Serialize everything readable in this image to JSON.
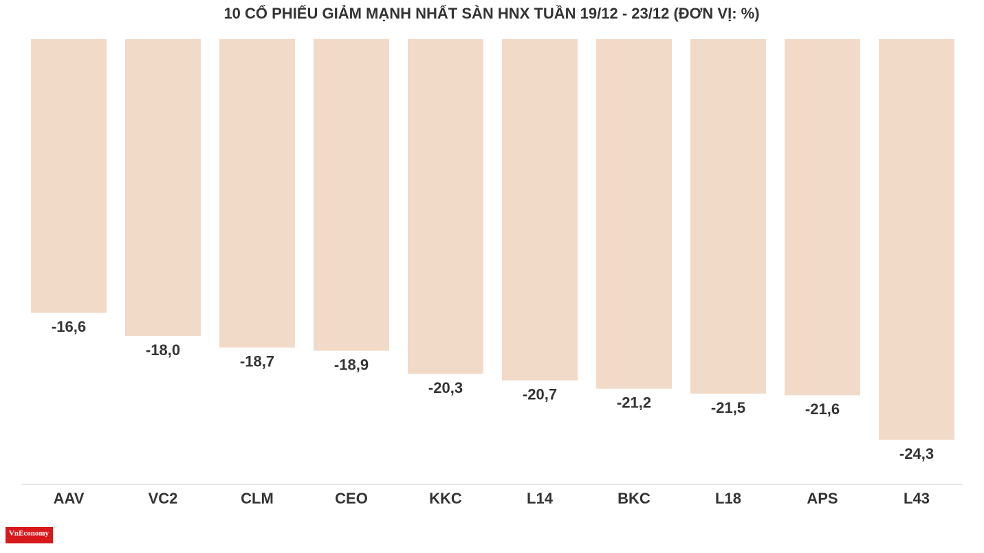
{
  "chart_data": {
    "type": "bar",
    "title": "10 CỔ PHIẾU GIẢM MẠNH NHẤT SÀN HNX TUẦN 19/12 - 23/12 (ĐƠN VỊ: %)",
    "categories": [
      "AAV",
      "VC2",
      "CLM",
      "CEO",
      "KKC",
      "L14",
      "BKC",
      "L18",
      "APS",
      "L43"
    ],
    "values": [
      -16.6,
      -18.0,
      -18.7,
      -18.9,
      -20.3,
      -20.7,
      -21.2,
      -21.5,
      -21.6,
      -24.3
    ],
    "value_labels": [
      "-16,6",
      "-18,0",
      "-18,7",
      "-18,9",
      "-20,3",
      "-20,7",
      "-21,2",
      "-21,5",
      "-21,6",
      "-24,3"
    ],
    "color": "#f2dac9",
    "ylim": [
      0,
      -27
    ]
  },
  "logo": "VnEconomy"
}
